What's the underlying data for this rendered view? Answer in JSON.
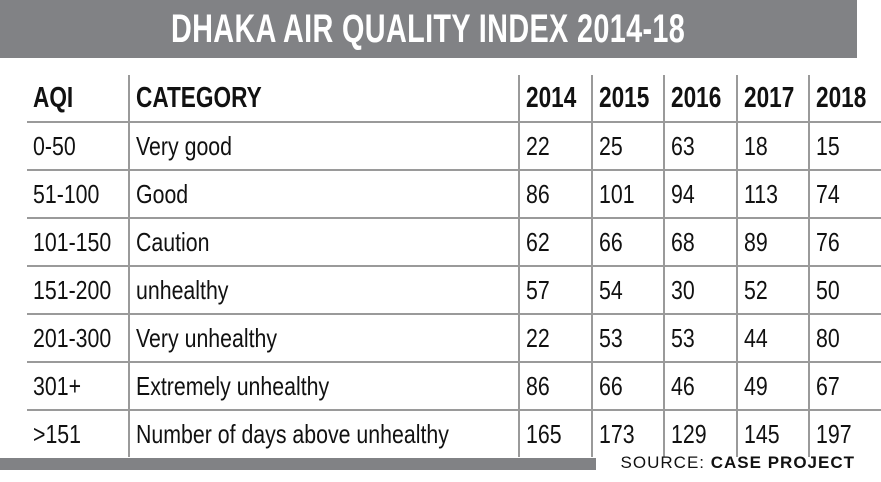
{
  "title": "DHAKA AIR QUALITY INDEX 2014-18",
  "table": {
    "headers": [
      "AQI",
      "CATEGORY",
      "2014",
      "2015",
      "2016",
      "2017",
      "2018"
    ],
    "rows": [
      [
        "0-50",
        "Very good",
        "22",
        "25",
        "63",
        "18",
        "15"
      ],
      [
        "51-100",
        "Good",
        "86",
        "101",
        "94",
        "113",
        "74"
      ],
      [
        "101-150",
        "Caution",
        "62",
        "66",
        "68",
        "89",
        "76"
      ],
      [
        "151-200",
        "unhealthy",
        "57",
        "54",
        "30",
        "52",
        "50"
      ],
      [
        "201-300",
        "Very unhealthy",
        "22",
        "53",
        "53",
        "44",
        "80"
      ],
      [
        "301+",
        "Extremely unhealthy",
        "86",
        "66",
        "46",
        "49",
        "67"
      ],
      [
        ">151",
        "Number of days above unhealthy",
        "165",
        "173",
        "129",
        "145",
        "197"
      ]
    ]
  },
  "source": {
    "label": "SOURCE:",
    "name": "CASE PROJECT"
  },
  "colors": {
    "bar": "#818285",
    "rule": "#9a9a9a"
  }
}
